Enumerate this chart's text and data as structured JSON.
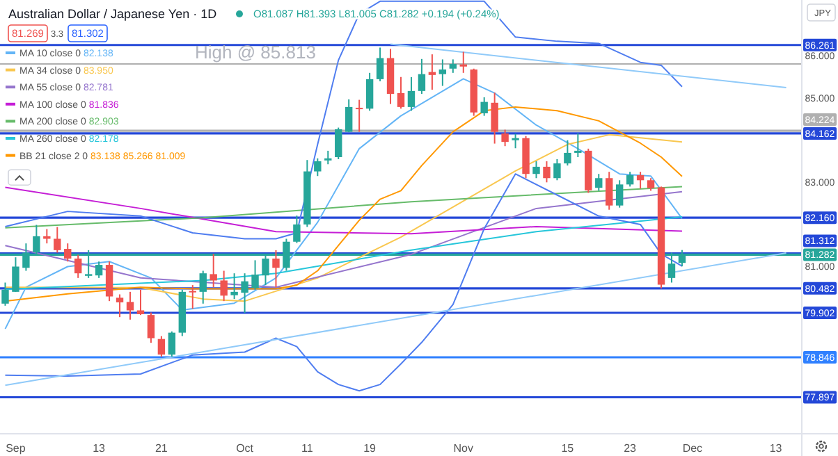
{
  "chart_data": {
    "type": "candlestick",
    "title": "Australian Dollar / Japanese Yen · 1D",
    "legend": "top left",
    "ylim": [
      77.03,
      87.33
    ],
    "yticks": [
      {
        "value": 86,
        "label": "86.000"
      },
      {
        "value": 85,
        "label": "85.000"
      },
      {
        "value": 83,
        "label": "83.000"
      },
      {
        "value": 81,
        "label": "81.000"
      }
    ],
    "categories": [
      null,
      "Sep",
      null,
      null,
      null,
      null,
      null,
      null,
      null,
      "13",
      null,
      null,
      null,
      null,
      null,
      "21",
      null,
      null,
      null,
      null,
      null,
      null,
      null,
      "Oct",
      null,
      null,
      null,
      null,
      null,
      "11",
      null,
      null,
      null,
      null,
      null,
      "19",
      null,
      null,
      null,
      null,
      null,
      null,
      null,
      null,
      "Nov",
      null,
      null,
      null,
      null,
      null,
      null,
      null,
      null,
      null,
      "15",
      null,
      null,
      null,
      null,
      null,
      "23",
      null,
      null,
      null,
      null,
      null,
      "Dec",
      null,
      null,
      null,
      null,
      null,
      null,
      null,
      "13",
      null,
      null
    ],
    "ohlc": [
      [
        80.12,
        80.62,
        80.07,
        80.45
      ],
      [
        80.4,
        81.22,
        80.4,
        81.0
      ],
      [
        80.97,
        81.55,
        80.9,
        81.33
      ],
      [
        81.34,
        81.99,
        81.28,
        81.72
      ],
      [
        81.72,
        81.89,
        81.55,
        81.66
      ],
      [
        81.66,
        81.94,
        81.33,
        81.39
      ],
      [
        81.42,
        81.55,
        81.12,
        81.19
      ],
      [
        81.19,
        81.28,
        80.73,
        80.84
      ],
      [
        80.78,
        81.39,
        80.73,
        80.82
      ],
      [
        80.79,
        81.12,
        80.73,
        81.04
      ],
      [
        81.04,
        81.12,
        80.18,
        80.29
      ],
      [
        80.26,
        80.34,
        79.8,
        80.15
      ],
      [
        80.16,
        80.4,
        79.74,
        79.96
      ],
      [
        79.96,
        80.45,
        79.85,
        79.87
      ],
      [
        79.85,
        79.91,
        79.19,
        79.3
      ],
      [
        79.28,
        79.35,
        78.86,
        78.91
      ],
      [
        78.91,
        79.46,
        78.86,
        79.43
      ],
      [
        79.43,
        80.45,
        79.35,
        80.4
      ],
      [
        80.42,
        80.56,
        80.0,
        80.4
      ],
      [
        80.4,
        80.9,
        80.12,
        80.84
      ],
      [
        80.82,
        81.3,
        80.51,
        80.67
      ],
      [
        80.67,
        80.9,
        80.18,
        80.31
      ],
      [
        80.32,
        80.84,
        80.23,
        80.4
      ],
      [
        80.38,
        80.84,
        79.9,
        80.65
      ],
      [
        80.49,
        81.15,
        80.45,
        80.81
      ],
      [
        80.79,
        81.28,
        80.56,
        81.19
      ],
      [
        81.19,
        81.39,
        80.51,
        80.97
      ],
      [
        80.97,
        81.66,
        80.9,
        81.59
      ],
      [
        81.59,
        82.21,
        81.56,
        82.0
      ],
      [
        82.0,
        83.53,
        81.94,
        83.26
      ],
      [
        83.26,
        83.57,
        83.15,
        83.5
      ],
      [
        83.52,
        83.75,
        83.43,
        83.57
      ],
      [
        83.6,
        84.3,
        83.55,
        84.26
      ],
      [
        84.2,
        84.97,
        84.19,
        84.79
      ],
      [
        84.77,
        84.96,
        84.2,
        84.74
      ],
      [
        84.75,
        85.6,
        84.7,
        85.45
      ],
      [
        85.45,
        86.2,
        85.4,
        85.95
      ],
      [
        85.95,
        86.17,
        84.86,
        85.1
      ],
      [
        85.12,
        85.5,
        84.75,
        84.79
      ],
      [
        84.79,
        85.5,
        84.7,
        85.17
      ],
      [
        85.17,
        85.93,
        85.1,
        85.57
      ],
      [
        85.62,
        86.04,
        85.2,
        85.55
      ],
      [
        85.57,
        85.92,
        85.29,
        85.68
      ],
      [
        85.7,
        85.92,
        85.6,
        85.81
      ],
      [
        85.8,
        86.1,
        85.6,
        85.75
      ],
      [
        85.68,
        85.7,
        84.58,
        84.66
      ],
      [
        84.64,
        85.02,
        84.58,
        84.91
      ],
      [
        84.89,
        85.13,
        83.92,
        84.2
      ],
      [
        84.16,
        84.25,
        83.86,
        83.96
      ],
      [
        84.0,
        84.15,
        83.81,
        84.05
      ],
      [
        84.05,
        84.1,
        83.1,
        83.2
      ],
      [
        83.2,
        83.5,
        83.1,
        83.37
      ],
      [
        83.37,
        83.5,
        83.0,
        83.1
      ],
      [
        83.1,
        83.55,
        83.05,
        83.45
      ],
      [
        83.45,
        84.0,
        83.4,
        83.7
      ],
      [
        83.7,
        84.16,
        83.6,
        83.75
      ],
      [
        83.75,
        83.8,
        82.75,
        82.81
      ],
      [
        82.87,
        83.2,
        82.8,
        83.1
      ],
      [
        83.1,
        83.25,
        82.35,
        82.45
      ],
      [
        82.45,
        83.05,
        82.4,
        82.95
      ],
      [
        82.95,
        83.25,
        82.9,
        83.17
      ],
      [
        83.17,
        83.25,
        82.85,
        83.05
      ],
      [
        83.05,
        83.1,
        82.8,
        82.86
      ],
      [
        82.88,
        82.9,
        80.48,
        80.57
      ],
      [
        80.73,
        81.33,
        80.62,
        81.07
      ],
      [
        81.087,
        81.393,
        81.005,
        81.282
      ],
      null,
      null,
      null,
      null,
      null,
      null,
      null,
      null,
      null,
      null,
      null
    ],
    "series": [
      {
        "type": "line",
        "name": "MA 10 close 0 82.138",
        "color": "#64b5f6",
        "values": [
          79.52,
          null,
          80.51,
          null,
          null,
          null,
          81.0,
          null,
          null,
          null,
          81.12,
          null,
          null,
          null,
          80.73,
          null,
          null,
          79.97,
          null,
          null,
          null,
          null,
          80.13,
          null,
          null,
          null,
          80.73,
          null,
          null,
          null,
          82.05,
          null,
          null,
          null,
          83.8,
          null,
          null,
          null,
          84.58,
          null,
          null,
          null,
          null,
          null,
          85.46,
          null,
          null,
          85.12,
          null,
          null,
          null,
          84.36,
          null,
          null,
          null,
          83.8,
          null,
          null,
          null,
          83.2,
          null,
          null,
          83.15,
          null,
          null,
          82.14,
          null,
          null,
          null,
          null,
          null,
          null,
          null,
          null,
          null,
          null,
          null
        ]
      },
      {
        "type": "line",
        "name": "MA 34 close 0 83.950",
        "color": "#f9c74f",
        "values": [
          80.51,
          null,
          null,
          null,
          null,
          null,
          null,
          null,
          null,
          null,
          null,
          null,
          null,
          80.5,
          null,
          null,
          null,
          null,
          null,
          80.23,
          null,
          null,
          null,
          80.18,
          null,
          null,
          null,
          null,
          null,
          null,
          80.73,
          null,
          null,
          null,
          null,
          null,
          null,
          null,
          81.7,
          null,
          null,
          null,
          null,
          null,
          null,
          null,
          null,
          null,
          null,
          83.27,
          null,
          null,
          null,
          null,
          83.9,
          null,
          null,
          null,
          84.13,
          null,
          null,
          null,
          null,
          null,
          null,
          83.96,
          null,
          null,
          null,
          null,
          null,
          null,
          null,
          null,
          null,
          null,
          null
        ]
      },
      {
        "type": "line",
        "name": "MA 55 close 0 82.781",
        "color": "#9575cd",
        "values": [
          81.5,
          null,
          null,
          null,
          null,
          null,
          null,
          null,
          null,
          null,
          null,
          null,
          null,
          80.73,
          null,
          null,
          null,
          null,
          null,
          null,
          null,
          null,
          null,
          null,
          null,
          null,
          80.51,
          null,
          null,
          null,
          null,
          null,
          null,
          null,
          null,
          null,
          null,
          null,
          null,
          81.29,
          null,
          null,
          null,
          null,
          null,
          null,
          null,
          null,
          null,
          null,
          null,
          82.38,
          null,
          null,
          null,
          null,
          null,
          null,
          null,
          null,
          null,
          null,
          null,
          null,
          null,
          82.78,
          null,
          null,
          null,
          null,
          null,
          null,
          null,
          null,
          null,
          null,
          null
        ]
      },
      {
        "type": "line",
        "name": "MA 100 close 0 81.836",
        "color": "#c51ed6",
        "values": [
          82.88,
          null,
          null,
          null,
          null,
          null,
          null,
          null,
          null,
          null,
          null,
          null,
          null,
          82.38,
          null,
          null,
          null,
          null,
          null,
          null,
          null,
          null,
          null,
          null,
          null,
          null,
          81.83,
          null,
          null,
          null,
          null,
          null,
          null,
          null,
          null,
          null,
          null,
          null,
          null,
          81.78,
          null,
          null,
          null,
          null,
          null,
          null,
          null,
          null,
          null,
          null,
          null,
          81.95,
          null,
          null,
          null,
          null,
          null,
          null,
          null,
          null,
          null,
          null,
          null,
          null,
          null,
          81.84,
          null,
          null,
          null,
          null,
          null,
          null,
          null,
          null,
          null,
          null,
          null
        ]
      },
      {
        "type": "line",
        "name": "MA 200 close 0 82.903",
        "color": "#66bb6a",
        "values": [
          81.92,
          null,
          null,
          null,
          null,
          null,
          null,
          null,
          null,
          null,
          null,
          null,
          null,
          null,
          null,
          null,
          null,
          null,
          null,
          82.16,
          null,
          null,
          null,
          null,
          null,
          null,
          null,
          null,
          null,
          null,
          null,
          null,
          null,
          null,
          null,
          null,
          null,
          null,
          null,
          82.54,
          null,
          null,
          null,
          null,
          null,
          null,
          null,
          null,
          null,
          null,
          null,
          null,
          null,
          null,
          null,
          null,
          null,
          null,
          null,
          null,
          null,
          null,
          null,
          null,
          null,
          82.9,
          null,
          null,
          null,
          null,
          null,
          null,
          null,
          null,
          null,
          null,
          null
        ]
      },
      {
        "type": "line",
        "name": "MA 260 close 0 82.178",
        "color": "#26c6da",
        "values": [
          80.46,
          null,
          null,
          null,
          null,
          null,
          null,
          null,
          null,
          null,
          null,
          null,
          null,
          null,
          null,
          null,
          null,
          null,
          null,
          80.67,
          null,
          null,
          null,
          null,
          null,
          null,
          80.84,
          null,
          null,
          null,
          null,
          null,
          null,
          null,
          null,
          null,
          null,
          null,
          null,
          81.39,
          null,
          null,
          null,
          null,
          null,
          null,
          null,
          null,
          null,
          null,
          null,
          81.83,
          null,
          null,
          null,
          null,
          null,
          null,
          null,
          null,
          null,
          null,
          null,
          null,
          null,
          82.18,
          null,
          null,
          null,
          null,
          null,
          null,
          null,
          null,
          null,
          null,
          null
        ]
      },
      {
        "type": "line",
        "name": "BB 21 close 2 0 83.138 85.266 81.009",
        "color": "#ff9800",
        "values": [
          80.18,
          null,
          null,
          null,
          null,
          null,
          80.35,
          null,
          null,
          null,
          null,
          null,
          null,
          80.51,
          null,
          null,
          null,
          null,
          80.47,
          null,
          null,
          null,
          null,
          80.47,
          null,
          null,
          80.47,
          null,
          80.56,
          null,
          80.9,
          null,
          81.5,
          null,
          82.1,
          null,
          82.6,
          null,
          82.8,
          null,
          83.4,
          null,
          null,
          84.2,
          null,
          null,
          84.7,
          null,
          null,
          84.79,
          null,
          null,
          null,
          84.7,
          null,
          null,
          null,
          84.46,
          null,
          null,
          null,
          83.93,
          null,
          83.6,
          null,
          83.14,
          null,
          null,
          null,
          null,
          null,
          null,
          null,
          null,
          null,
          null,
          null
        ]
      },
      {
        "type": "line",
        "color": "#4f7df0",
        "values": [
          81.95,
          null,
          null,
          null,
          null,
          null,
          82.31,
          null,
          null,
          null,
          null,
          null,
          null,
          82.2,
          null,
          null,
          null,
          null,
          81.8,
          null,
          null,
          null,
          null,
          81.66,
          null,
          null,
          81.66,
          null,
          81.8,
          null,
          83.9,
          null,
          85.9,
          null,
          87.0,
          null,
          87.3,
          null,
          87.3,
          null,
          87.3,
          null,
          null,
          87.3,
          null,
          null,
          87.3,
          null,
          null,
          86.45,
          null,
          null,
          null,
          86.35,
          null,
          null,
          null,
          86.3,
          null,
          null,
          null,
          85.85,
          null,
          85.78,
          null,
          85.27,
          null,
          null,
          null,
          null,
          null,
          null,
          null,
          null,
          null,
          null,
          null
        ]
      },
      {
        "type": "line",
        "color": "#4f7df0",
        "values": [
          78.42,
          null,
          null,
          null,
          null,
          null,
          78.4,
          null,
          null,
          null,
          null,
          null,
          null,
          78.45,
          null,
          null,
          null,
          null,
          78.9,
          null,
          null,
          null,
          null,
          78.97,
          null,
          null,
          79.3,
          null,
          79.1,
          null,
          78.5,
          null,
          78.2,
          null,
          78.05,
          null,
          78.2,
          null,
          78.69,
          null,
          79.2,
          null,
          null,
          80.1,
          null,
          null,
          81.9,
          null,
          null,
          83.2,
          null,
          null,
          null,
          82.7,
          null,
          null,
          null,
          82.2,
          null,
          null,
          null,
          82.0,
          null,
          81.3,
          null,
          81.01,
          null,
          null,
          null,
          null,
          null,
          null,
          null,
          null,
          null,
          null,
          null
        ]
      },
      {
        "type": "line",
        "color": "#90caf9",
        "values": [
          78.18,
          null,
          null,
          null,
          null,
          null,
          null,
          null,
          null,
          null,
          null,
          null,
          null,
          null,
          null,
          null,
          null,
          null,
          null,
          null,
          null,
          null,
          null,
          null,
          null,
          null,
          null,
          null,
          null,
          null,
          null,
          null,
          null,
          null,
          null,
          null,
          null,
          null,
          null,
          null,
          null,
          null,
          null,
          null,
          null,
          null,
          null,
          null,
          null,
          null,
          null,
          null,
          null,
          null,
          null,
          null,
          null,
          null,
          null,
          null,
          null,
          null,
          null,
          null,
          null,
          null,
          null,
          null,
          null,
          null,
          null,
          null,
          null,
          null,
          null,
          81.32,
          null
        ]
      },
      {
        "type": "line",
        "color": "#90caf9",
        "values": [
          null,
          null,
          null,
          null,
          null,
          null,
          null,
          null,
          null,
          null,
          null,
          null,
          null,
          null,
          null,
          null,
          null,
          null,
          null,
          null,
          null,
          null,
          null,
          null,
          null,
          null,
          null,
          null,
          null,
          null,
          null,
          null,
          null,
          null,
          null,
          null,
          null,
          86.28,
          null,
          null,
          null,
          null,
          null,
          null,
          null,
          null,
          null,
          null,
          null,
          null,
          null,
          null,
          null,
          null,
          null,
          null,
          null,
          null,
          null,
          null,
          null,
          null,
          null,
          null,
          null,
          null,
          null,
          null,
          null,
          null,
          null,
          null,
          null,
          null,
          null,
          85.25,
          null
        ]
      }
    ],
    "ref_lines": [
      {
        "axis": "y",
        "value": 86.261,
        "label": "86.261",
        "color": "#2448d8"
      },
      {
        "axis": "y",
        "value": 85.813,
        "color": "#b0b0b0"
      },
      {
        "axis": "y",
        "value": 84.224,
        "label": "84.224",
        "color": "#b0b0b0"
      },
      {
        "axis": "y",
        "value": 84.162,
        "label": "84.162",
        "color": "#2448d8"
      },
      {
        "axis": "y",
        "value": 82.16,
        "label": "82.160",
        "color": "#2448d8"
      },
      {
        "axis": "y",
        "value": 81.312,
        "label": "81.312",
        "color": "#2448d8"
      },
      {
        "axis": "y",
        "value": 81.282,
        "label": "81.282",
        "color": "#26a69a"
      },
      {
        "axis": "y",
        "value": 80.482,
        "label": "80.482",
        "color": "#2448d8"
      },
      {
        "axis": "y",
        "value": 79.902,
        "label": "79.902",
        "color": "#2448d8"
      },
      {
        "axis": "y",
        "value": 78.846,
        "label": "78.846",
        "color": "#2f80ff"
      },
      {
        "axis": "y",
        "value": 77.897,
        "label": "77.897",
        "color": "#2448d8"
      }
    ],
    "annotations": [
      {
        "text": "High @ 85.813",
        "y": 85.813
      },
      "O81.087 H81.393 L81.005 C81.282 +0.194 (+0.24%)",
      "81.269",
      "3.3",
      "81.302",
      "JPY"
    ]
  }
}
